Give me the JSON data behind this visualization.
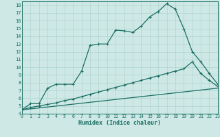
{
  "xlabel": "Humidex (Indice chaleur)",
  "bg_color": "#cde8e5",
  "line_color": "#1a6e63",
  "grid_color": "#b0d5d0",
  "xlim": [
    0,
    23
  ],
  "ylim": [
    4,
    18.5
  ],
  "x_ticks": [
    0,
    1,
    2,
    3,
    4,
    5,
    6,
    7,
    8,
    9,
    10,
    11,
    12,
    13,
    14,
    15,
    16,
    17,
    18,
    19,
    20,
    21,
    22,
    23
  ],
  "y_ticks": [
    4,
    5,
    6,
    7,
    8,
    9,
    10,
    11,
    12,
    13,
    14,
    15,
    16,
    17,
    18
  ],
  "curve_main_x": [
    0,
    1,
    2,
    3,
    4,
    5,
    6,
    7,
    8,
    9,
    10,
    11,
    12,
    13,
    14,
    15,
    16,
    17,
    18,
    19,
    20,
    21,
    22,
    23
  ],
  "curve_main_y": [
    4.5,
    5.3,
    5.3,
    7.3,
    7.8,
    7.8,
    7.8,
    9.5,
    12.8,
    13.0,
    13.0,
    14.8,
    14.7,
    14.5,
    15.3,
    16.5,
    17.2,
    18.2,
    17.5,
    15.0,
    12.0,
    10.7,
    9.2,
    7.8
  ],
  "curve2_x": [
    0,
    1,
    2,
    3,
    4,
    5,
    6,
    7,
    8,
    9,
    10,
    11,
    12,
    13,
    14,
    15,
    16,
    17,
    18,
    19,
    20,
    21,
    22,
    23
  ],
  "curve2_y": [
    4.5,
    4.8,
    5.0,
    5.2,
    5.4,
    5.7,
    5.9,
    6.2,
    6.5,
    6.8,
    7.1,
    7.4,
    7.7,
    8.0,
    8.3,
    8.6,
    8.9,
    9.2,
    9.5,
    9.8,
    10.7,
    9.2,
    8.3,
    7.5
  ],
  "curve3_x": [
    0,
    23
  ],
  "curve3_y": [
    4.5,
    7.3
  ]
}
